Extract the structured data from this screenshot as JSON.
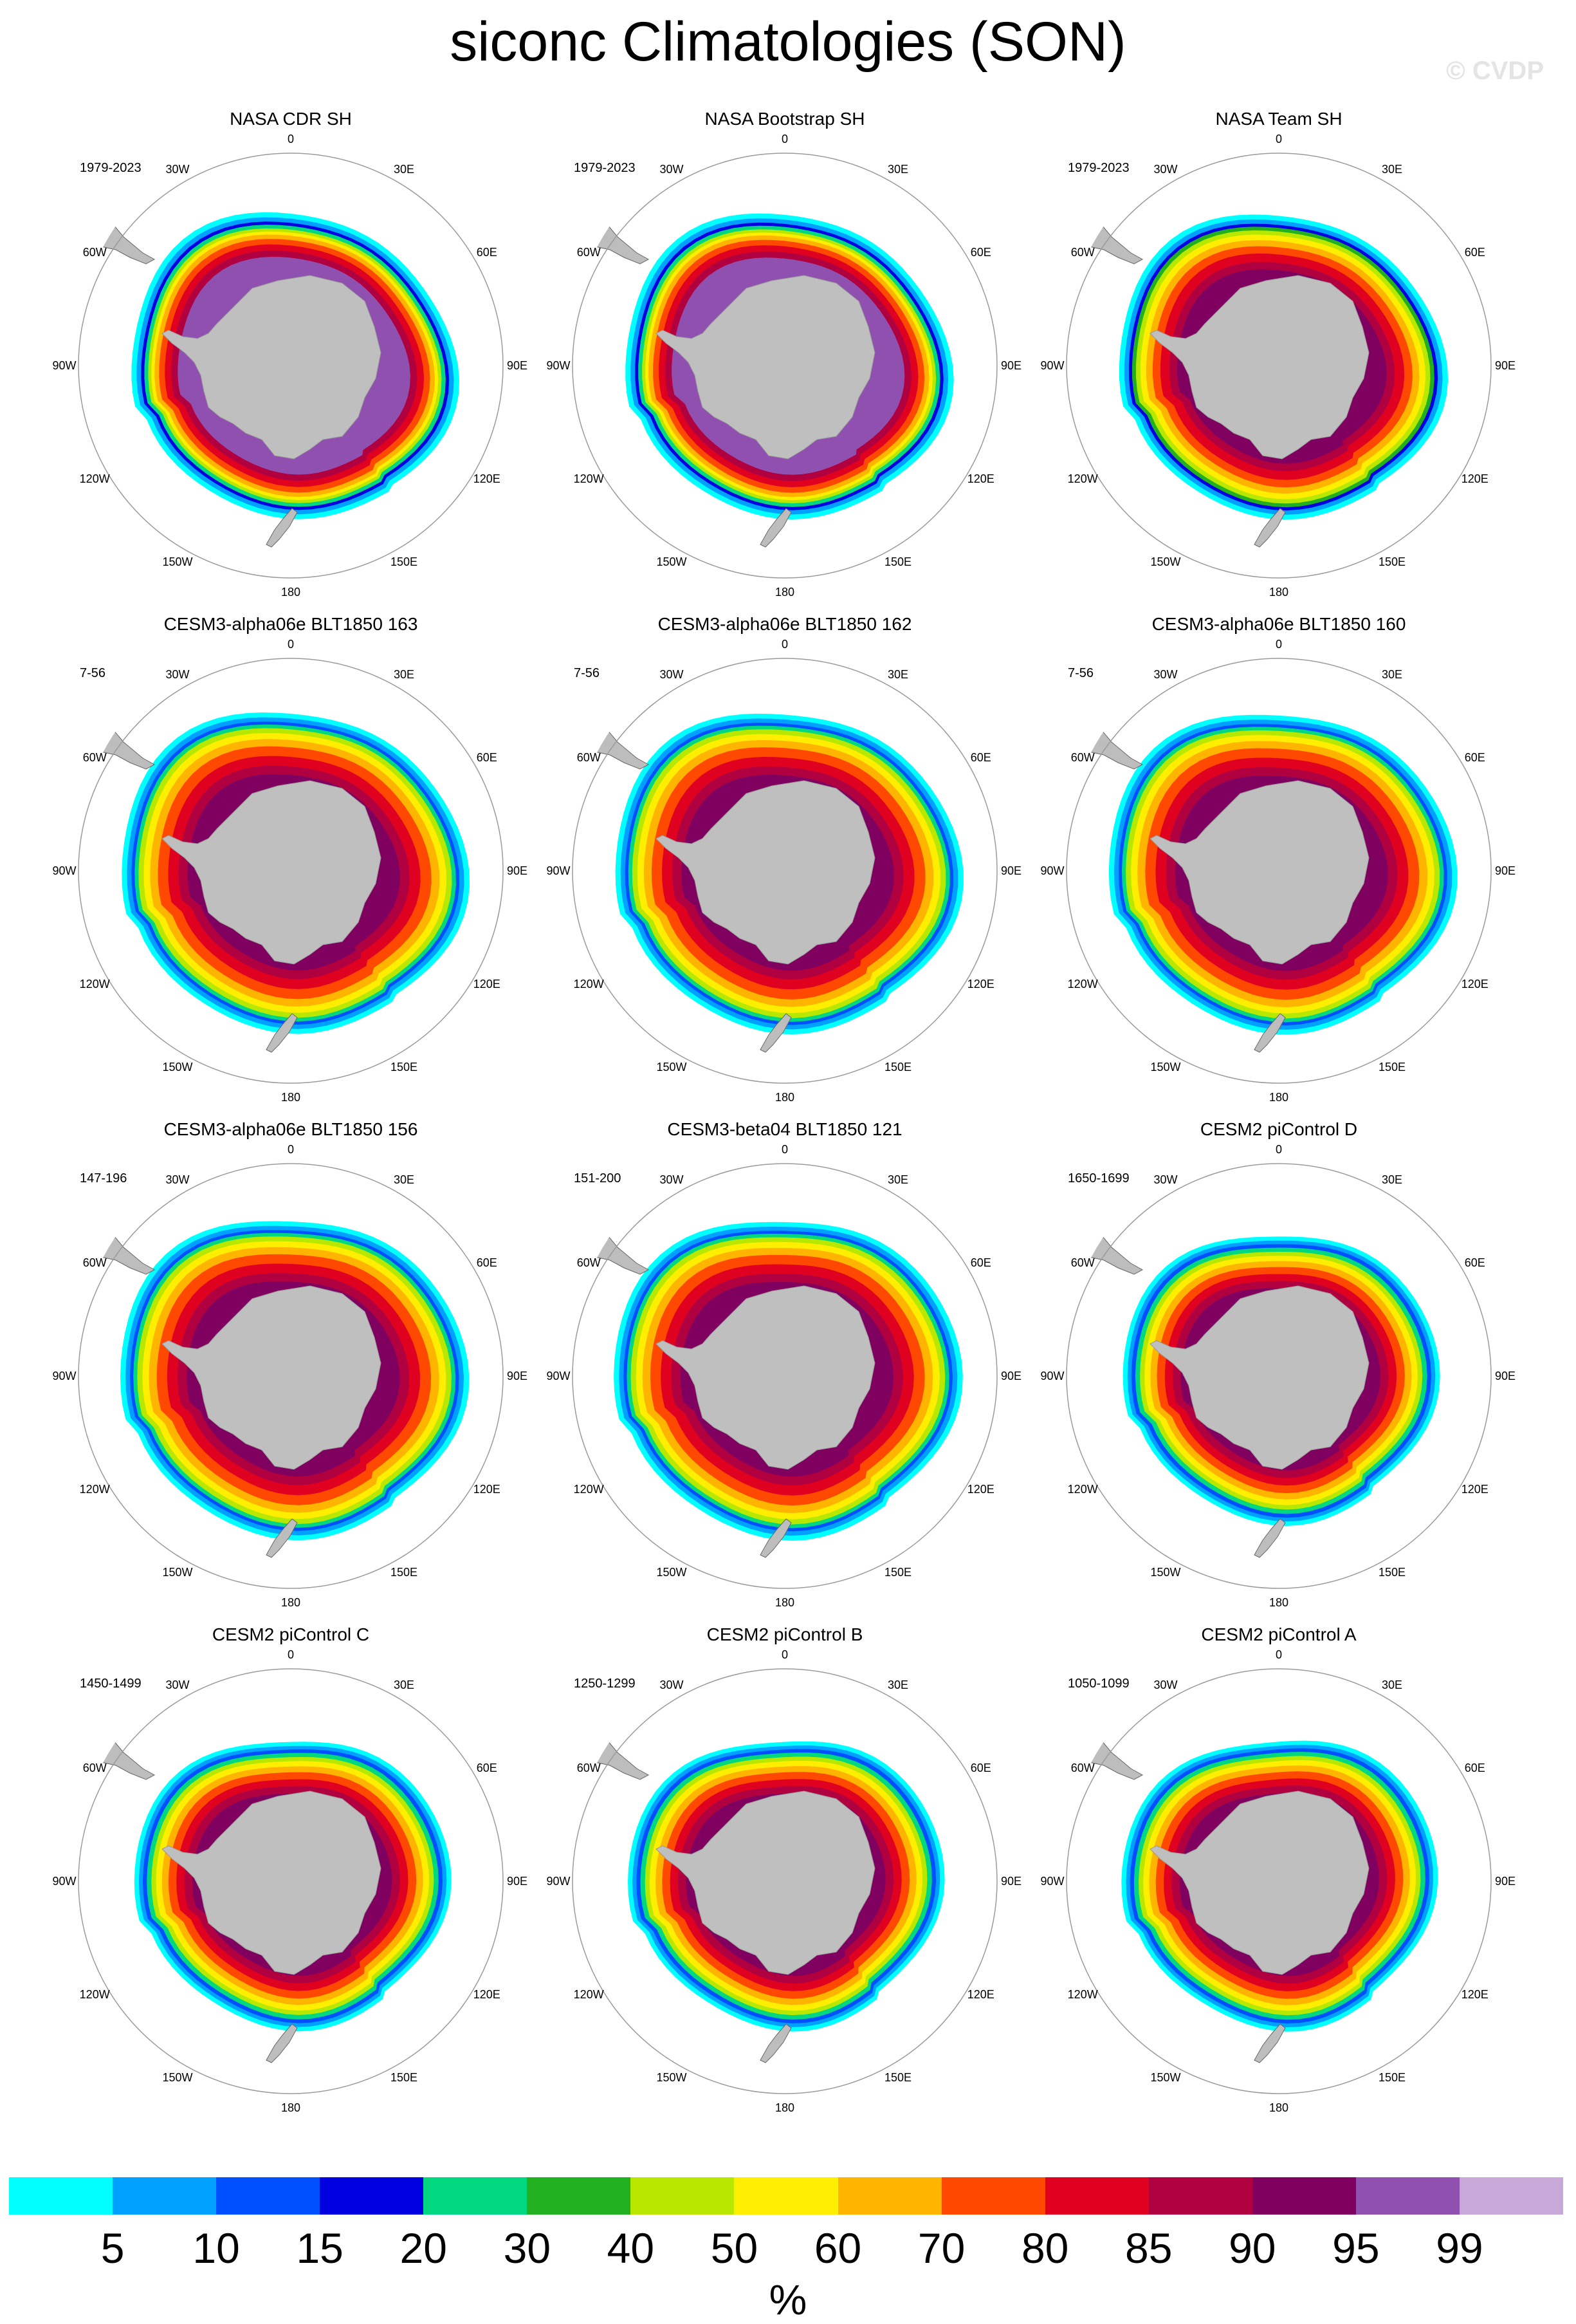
{
  "title": "siconc Climatologies (SON)",
  "watermark": "© CVDP",
  "colorbar": {
    "colors": [
      "#00ffff",
      "#00a0ff",
      "#0050ff",
      "#0000e0",
      "#00d880",
      "#20b020",
      "#b8e800",
      "#ffee00",
      "#ffb400",
      "#ff4800",
      "#e00020",
      "#b00040",
      "#800060",
      "#9050b0",
      "#c8a8d8"
    ],
    "labels": [
      "5",
      "10",
      "15",
      "20",
      "30",
      "40",
      "50",
      "60",
      "70",
      "80",
      "85",
      "90",
      "95",
      "99"
    ],
    "unit": "%"
  },
  "map_labels": {
    "lon": [
      "0",
      "30E",
      "60E",
      "90E",
      "120E",
      "150E",
      "180",
      "150W",
      "120W",
      "90W",
      "60W",
      "30W"
    ]
  },
  "panels": [
    {
      "title": "NASA CDR SH",
      "period": "1979-2023",
      "style": "obs-purple"
    },
    {
      "title": "NASA Bootstrap SH",
      "period": "1979-2023",
      "style": "obs-purple"
    },
    {
      "title": "NASA Team SH",
      "period": "1979-2023",
      "style": "obs-red"
    },
    {
      "title": "CESM3-alpha06e BLT1850 163",
      "period": "7-56",
      "style": "model-wide"
    },
    {
      "title": "CESM3-alpha06e BLT1850 162",
      "period": "7-56",
      "style": "model-wide"
    },
    {
      "title": "CESM3-alpha06e BLT1850 160",
      "period": "7-56",
      "style": "model-wide"
    },
    {
      "title": "CESM3-alpha06e BLT1850 156",
      "period": "147-196",
      "style": "model-wide"
    },
    {
      "title": "CESM3-beta04 BLT1850 121",
      "period": "151-200",
      "style": "model-wide"
    },
    {
      "title": "CESM2 piControl D",
      "period": "1650-1699",
      "style": "cesm2"
    },
    {
      "title": "CESM2 piControl C",
      "period": "1450-1499",
      "style": "cesm2"
    },
    {
      "title": "CESM2 piControl B",
      "period": "1250-1299",
      "style": "cesm2"
    },
    {
      "title": "CESM2 piControl A",
      "period": "1050-1099",
      "style": "cesm2"
    }
  ]
}
